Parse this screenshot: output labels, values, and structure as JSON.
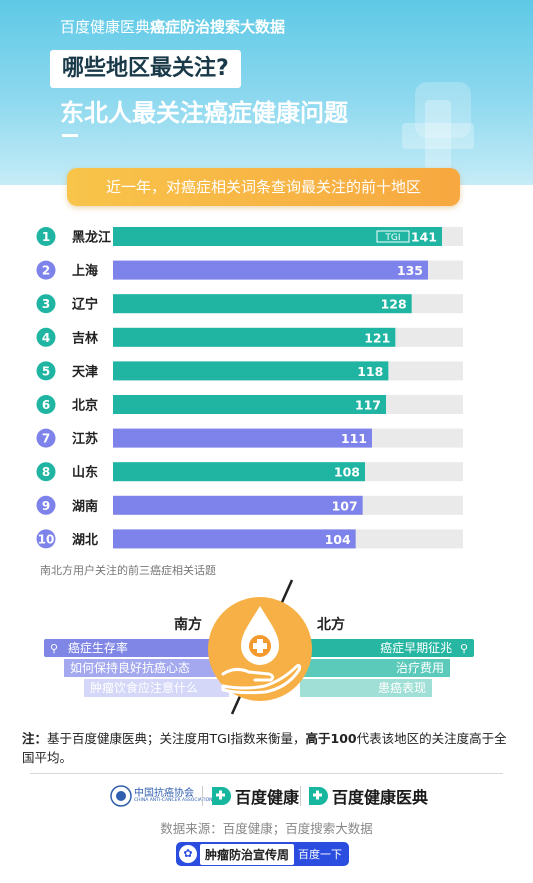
{
  "header": {
    "brand_prefix": "百度健康医典",
    "brand_suffix": "癌症防治搜索大数据",
    "question": "哪些地区最关注?",
    "headline": "东北人最关注癌症健康问题"
  },
  "banner": "近一年，对癌症相关词条查询最关注的前十地区",
  "colors": {
    "teal": "#1fb5a2",
    "purple": "#7d83ea",
    "track": "#eaeaea",
    "orange": "#f7b046"
  },
  "chart_data": {
    "type": "bar",
    "orientation": "horizontal",
    "metric_tag": "TGI",
    "xlim": [
      0,
      150
    ],
    "ranks": [
      "1",
      "2",
      "3",
      "4",
      "5",
      "6",
      "7",
      "8",
      "9",
      "10"
    ],
    "categories": [
      "黑龙江",
      "上海",
      "辽宁",
      "吉林",
      "天津",
      "北京",
      "江苏",
      "山东",
      "湖南",
      "湖北"
    ],
    "values": [
      141,
      135,
      128,
      121,
      118,
      117,
      111,
      108,
      107,
      104
    ],
    "groups": [
      "north",
      "south",
      "north",
      "north",
      "north",
      "north",
      "south",
      "north",
      "south",
      "south"
    ]
  },
  "source_note": "南北方用户关注的前三癌症相关话题",
  "topics": {
    "south_label": "南方",
    "north_label": "北方",
    "south": [
      "癌症生存率",
      "如何保持良好抗癌心态",
      "肿瘤饮食应注意什么"
    ],
    "north": [
      "癌症早期征兆",
      "治疗费用",
      "患癌表现"
    ]
  },
  "footnote": {
    "prefix": "注：",
    "text1": "基于百度健康医典；关注度用TGI指数来衡量，",
    "bold": "高于100",
    "text2": "代表该地区的关注度高于全国平均。"
  },
  "logos": {
    "cacaa_cn": "中国抗癌协会",
    "cacaa_en": "CHINA ANTI-CANCER ASSOCIATION",
    "baidu_health": "百度健康",
    "baidu_medical": "百度健康医典"
  },
  "data_source": "数据来源：百度健康；百度搜索大数据",
  "week_badge": {
    "label": "肿瘤防治宣传周",
    "suffix": "百度一下"
  }
}
